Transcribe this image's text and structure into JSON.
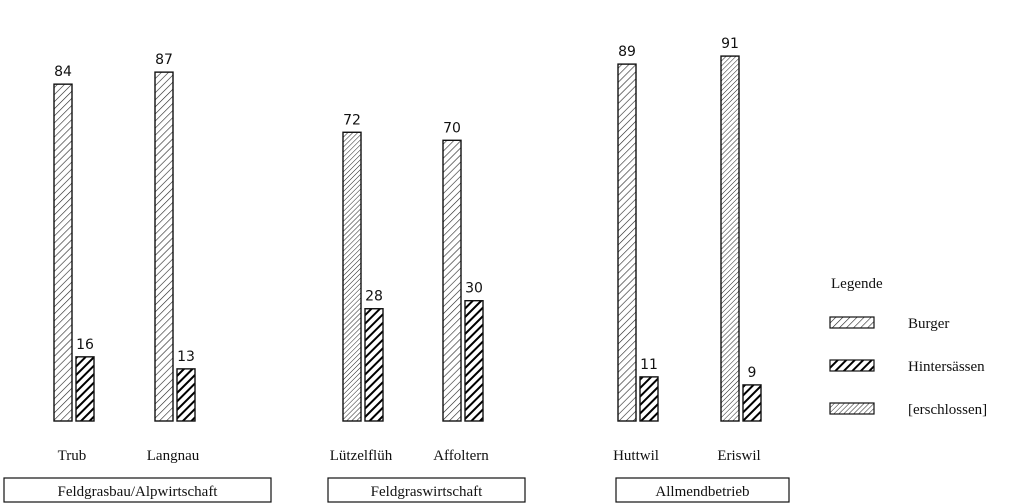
{
  "chart_data": {
    "type": "bar",
    "categories": [
      "Trub",
      "Langnau",
      "Lützelflüh",
      "Affoltern",
      "Huttwil",
      "Eriswil"
    ],
    "groups": [
      "Feldgrasbau/Alpwirtschaft",
      "Feldgraswirtschaft",
      "Allmendbetrieb"
    ],
    "category_group": [
      0,
      0,
      1,
      1,
      2,
      2
    ],
    "series": [
      {
        "name": "Burger",
        "values": [
          84,
          87,
          72,
          70,
          89,
          91
        ],
        "pattern": [
          "light",
          "light",
          "light-dense",
          "light",
          "light",
          "light-dense"
        ]
      },
      {
        "name": "Hintersässen",
        "values": [
          16,
          13,
          28,
          30,
          11,
          9
        ],
        "pattern": "dark"
      }
    ],
    "legend": {
      "title": "Legende",
      "entries": [
        "Burger",
        "Hintersässen",
        "[erschlossen]"
      ],
      "placement": "right"
    },
    "ylim": [
      0,
      100
    ],
    "grid": false,
    "colors": {
      "ink": "#111111",
      "background": "#ffffff"
    }
  }
}
